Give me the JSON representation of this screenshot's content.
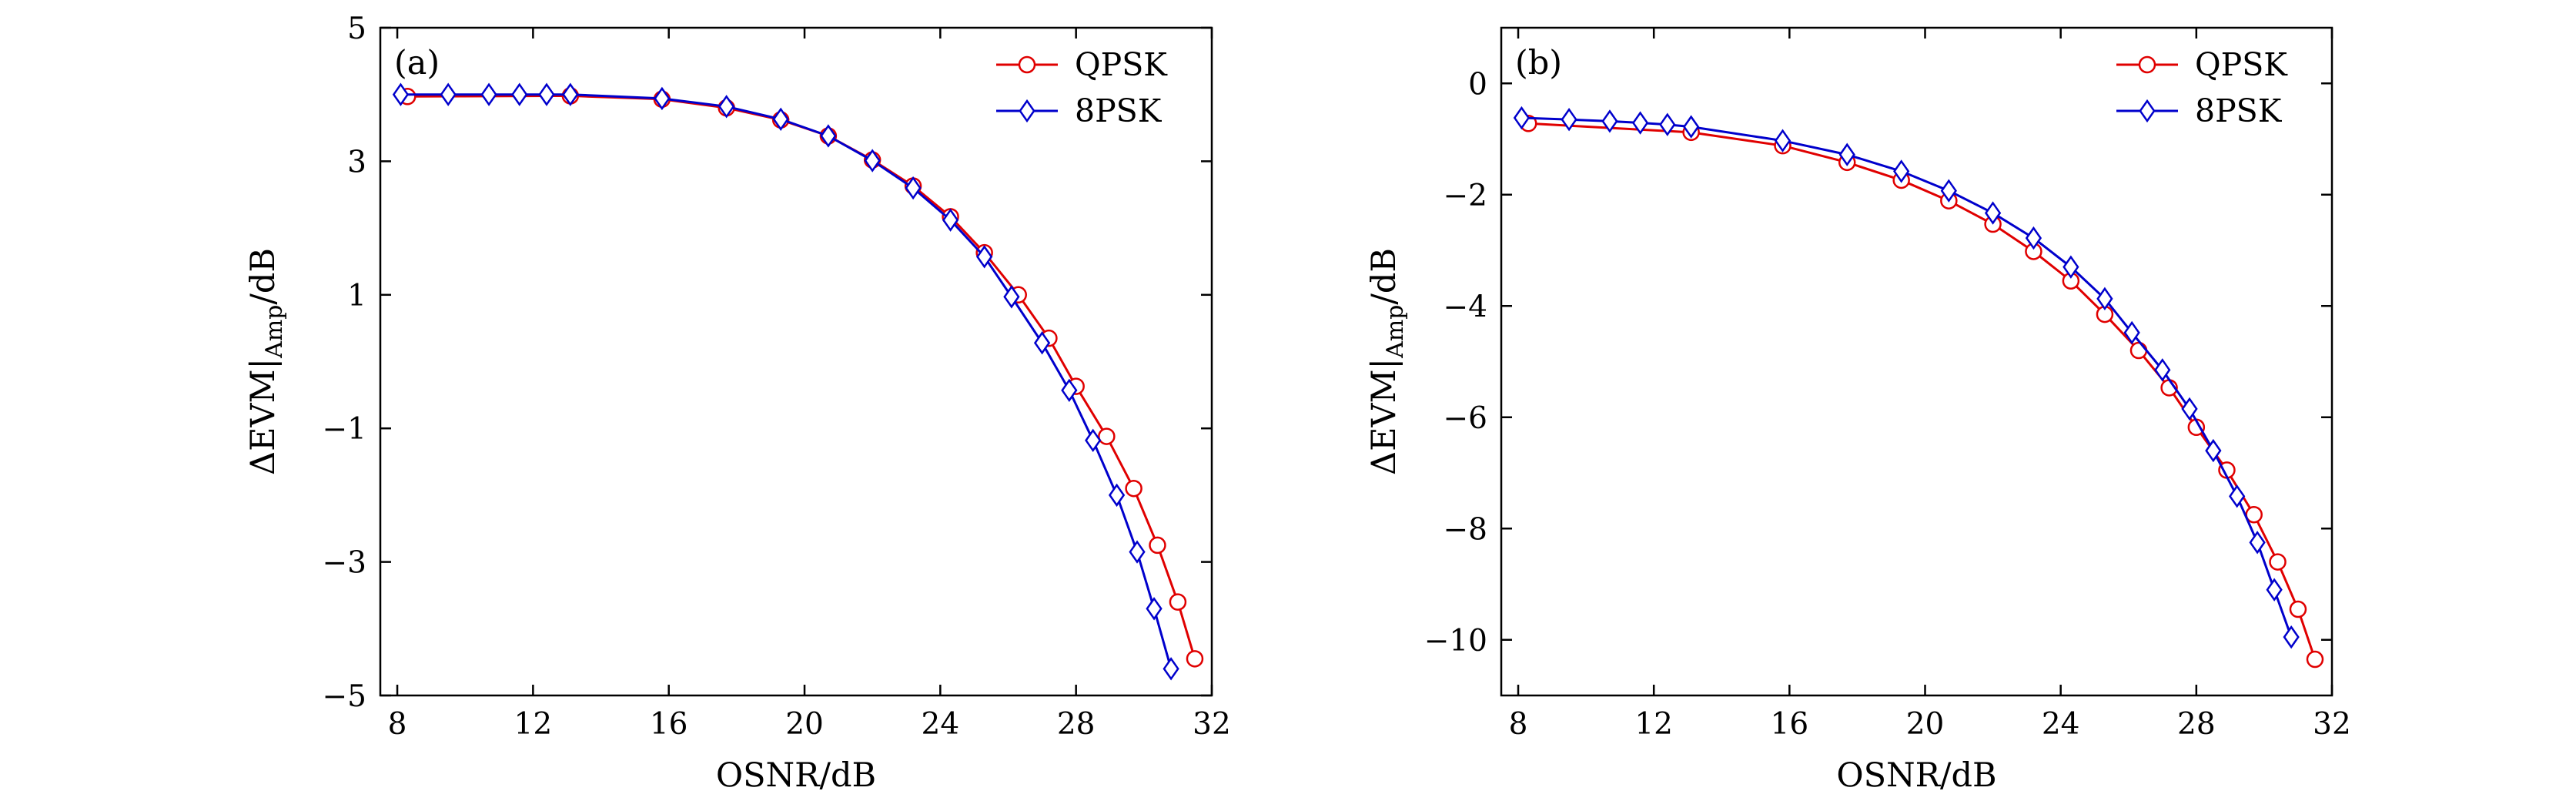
{
  "chart_data": [
    {
      "type": "line",
      "panel_label": "(a)",
      "xlabel": "OSNR/dB",
      "ylabel": {
        "base": "ΔEVM|",
        "subscript": "Amp",
        "suffix": "/dB"
      },
      "xlim": [
        7.5,
        32
      ],
      "ylim": [
        -5,
        5
      ],
      "xticks": [
        8,
        12,
        16,
        20,
        24,
        28,
        32
      ],
      "xtick_labels": [
        "8",
        "12",
        "16",
        "20",
        "24",
        "28",
        "32"
      ],
      "yticks": [
        5,
        3,
        1,
        -1,
        -3,
        -5
      ],
      "ytick_labels": [
        "5",
        "3",
        "1",
        "−1",
        "−3",
        "−5"
      ],
      "grid": false,
      "legend": "top-right",
      "series": [
        {
          "name": "QPSK",
          "color": "#e00000",
          "marker": "circle",
          "x": [
            8.3,
            13.1,
            15.8,
            17.7,
            19.3,
            20.7,
            22.0,
            23.2,
            24.3,
            25.3,
            26.3,
            27.2,
            28.0,
            28.9,
            29.7,
            30.4,
            31.0,
            31.5
          ],
          "y": [
            3.97,
            3.98,
            3.93,
            3.8,
            3.62,
            3.38,
            3.02,
            2.63,
            2.17,
            1.63,
            1.0,
            0.35,
            -0.37,
            -1.12,
            -1.9,
            -2.75,
            -3.6,
            -4.45
          ]
        },
        {
          "name": "8PSK",
          "color": "#0000cc",
          "marker": "diamond",
          "x": [
            8.1,
            9.5,
            10.7,
            11.6,
            12.4,
            13.1,
            15.8,
            17.7,
            19.3,
            20.7,
            22.0,
            23.2,
            24.3,
            25.3,
            26.1,
            27.0,
            27.8,
            28.5,
            29.2,
            29.8,
            30.3,
            30.8
          ],
          "y": [
            4.0,
            4.0,
            4.0,
            4.0,
            4.0,
            4.0,
            3.94,
            3.82,
            3.63,
            3.38,
            3.01,
            2.6,
            2.12,
            1.57,
            0.97,
            0.28,
            -0.43,
            -1.18,
            -2.0,
            -2.85,
            -3.7,
            -4.6
          ]
        }
      ]
    },
    {
      "type": "line",
      "panel_label": "(b)",
      "xlabel": "OSNR/dB",
      "ylabel": {
        "base": "ΔEVM|",
        "subscript": "Amp",
        "suffix": "/dB"
      },
      "xlim": [
        7.5,
        32
      ],
      "ylim": [
        -11,
        1
      ],
      "xticks": [
        8,
        12,
        16,
        20,
        24,
        28,
        32
      ],
      "xtick_labels": [
        "8",
        "12",
        "16",
        "20",
        "24",
        "28",
        "32"
      ],
      "yticks": [
        0,
        -2,
        -4,
        -6,
        -8,
        -10
      ],
      "ytick_labels": [
        "0",
        "−2",
        "−4",
        "−6",
        "−8",
        "−10"
      ],
      "grid": false,
      "legend": "top-right",
      "series": [
        {
          "name": "QPSK",
          "color": "#e00000",
          "marker": "circle",
          "x": [
            8.3,
            13.1,
            15.8,
            17.7,
            19.3,
            20.7,
            22.0,
            23.2,
            24.3,
            25.3,
            26.3,
            27.2,
            28.0,
            28.9,
            29.7,
            30.4,
            31.0,
            31.5
          ],
          "y": [
            -0.72,
            -0.88,
            -1.12,
            -1.42,
            -1.74,
            -2.11,
            -2.53,
            -3.02,
            -3.55,
            -4.15,
            -4.8,
            -5.47,
            -6.18,
            -6.95,
            -7.75,
            -8.6,
            -9.45,
            -10.35
          ],
          "y_note": ""
        },
        {
          "name": "8PSK",
          "color": "#0000cc",
          "marker": "diamond",
          "x": [
            8.1,
            9.5,
            10.7,
            11.6,
            12.4,
            13.1,
            15.8,
            17.7,
            19.3,
            20.7,
            22.0,
            23.2,
            24.3,
            25.3,
            26.1,
            27.0,
            27.8,
            28.5,
            29.2,
            29.8,
            30.3,
            30.8
          ],
          "y": [
            -0.62,
            -0.65,
            -0.68,
            -0.71,
            -0.74,
            -0.78,
            -1.03,
            -1.28,
            -1.58,
            -1.93,
            -2.33,
            -2.78,
            -3.3,
            -3.87,
            -4.48,
            -5.15,
            -5.85,
            -6.6,
            -7.42,
            -8.25,
            -9.1,
            -9.95
          ]
        }
      ]
    }
  ]
}
